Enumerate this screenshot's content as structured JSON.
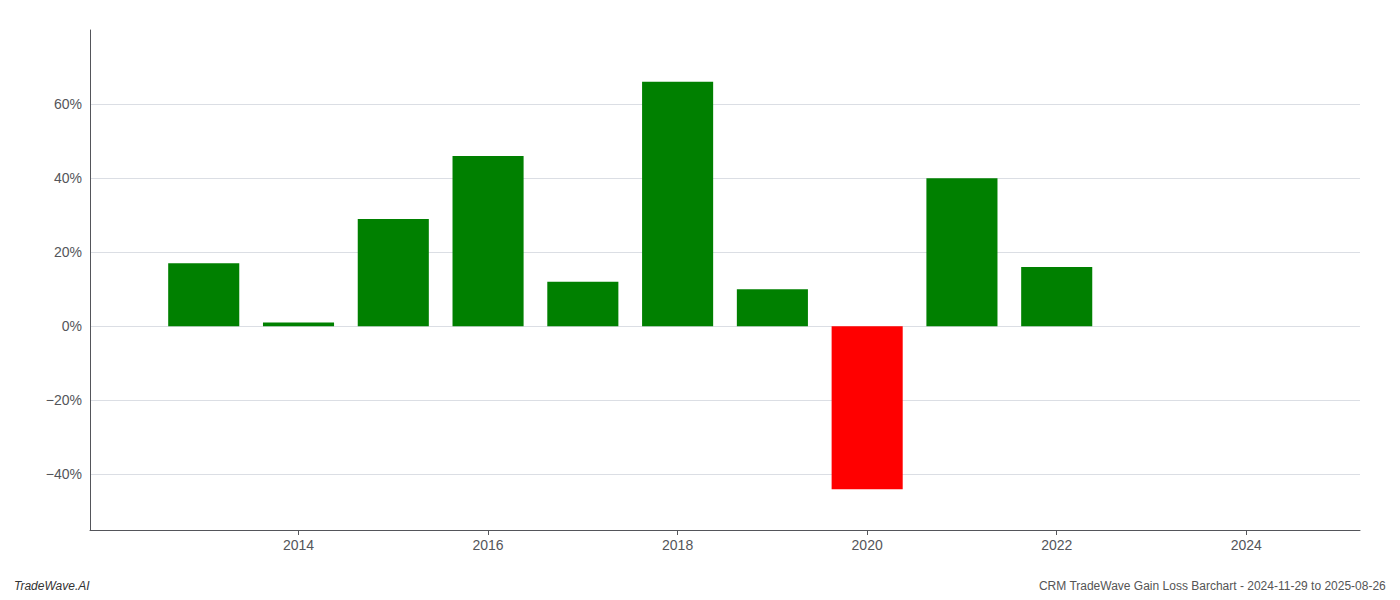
{
  "chart_data": {
    "type": "bar",
    "x": [
      2013,
      2014,
      2015,
      2016,
      2017,
      2018,
      2019,
      2020,
      2021,
      2022
    ],
    "values": [
      0.17,
      0.01,
      0.29,
      0.46,
      0.12,
      0.66,
      0.1,
      -0.44,
      0.4,
      0.16
    ],
    "colors": [
      "#008000",
      "#008000",
      "#008000",
      "#008000",
      "#008000",
      "#008000",
      "#008000",
      "#ff0000",
      "#008000",
      "#008000"
    ],
    "xlim": [
      2011.8,
      2025.2
    ],
    "xticks": [
      2014,
      2016,
      2018,
      2020,
      2022,
      2024
    ],
    "ylim": [
      -0.55,
      0.8
    ],
    "yticks": [
      {
        "value": -0.4,
        "label": "−40%"
      },
      {
        "value": -0.2,
        "label": "−20%"
      },
      {
        "value": 0.0,
        "label": "0%"
      },
      {
        "value": 0.2,
        "label": "20%"
      },
      {
        "value": 0.4,
        "label": "40%"
      },
      {
        "value": 0.6,
        "label": "60%"
      }
    ],
    "grid": true,
    "annotations": [
      "TradeWave.AI",
      "CRM TradeWave Gain Loss Barchart - 2024-11-29 to 2025-08-26"
    ]
  }
}
